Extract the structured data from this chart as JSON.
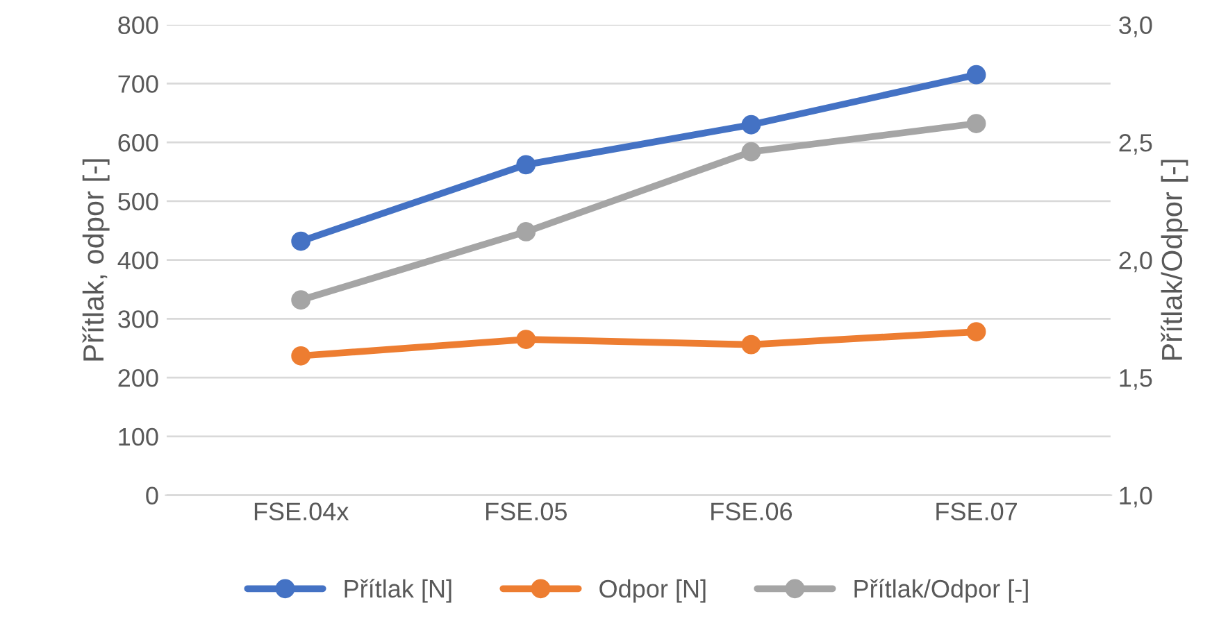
{
  "chart_data": {
    "type": "line",
    "ylabel": "Přítlak, odpor [-]",
    "y2label": "Přítlak/Odpor [-]",
    "categories": [
      "FSE.04x",
      "FSE.05",
      "FSE.06",
      "FSE.07"
    ],
    "series": [
      {
        "name": "Přítlak [N]",
        "color": "#4472c4",
        "values": [
          432,
          562,
          630,
          715
        ]
      },
      {
        "name": "Odpor [N]",
        "color": "#ed7d31",
        "values": [
          237,
          265,
          256,
          278
        ]
      },
      {
        "name": "Přítlak/Odpor [-]",
        "color": "#a5a5a5",
        "values": [
          1.83,
          2.12,
          2.46,
          2.58
        ],
        "axis": "y2"
      }
    ],
    "ylim": [
      0,
      800
    ],
    "yticks": [
      0,
      100,
      200,
      300,
      400,
      500,
      600,
      700,
      800
    ],
    "y2lim": [
      1.0,
      3.0
    ],
    "y2ticks": [
      {
        "value": 1.0,
        "label": "1,0"
      },
      {
        "value": 1.5,
        "label": "1,5"
      },
      {
        "value": 2.0,
        "label": "2,0"
      },
      {
        "value": 2.5,
        "label": "2,5"
      },
      {
        "value": 3.0,
        "label": "3,0"
      }
    ],
    "grid": "y",
    "legend": "bottom",
    "marker": "circle",
    "line_style": "solid"
  }
}
